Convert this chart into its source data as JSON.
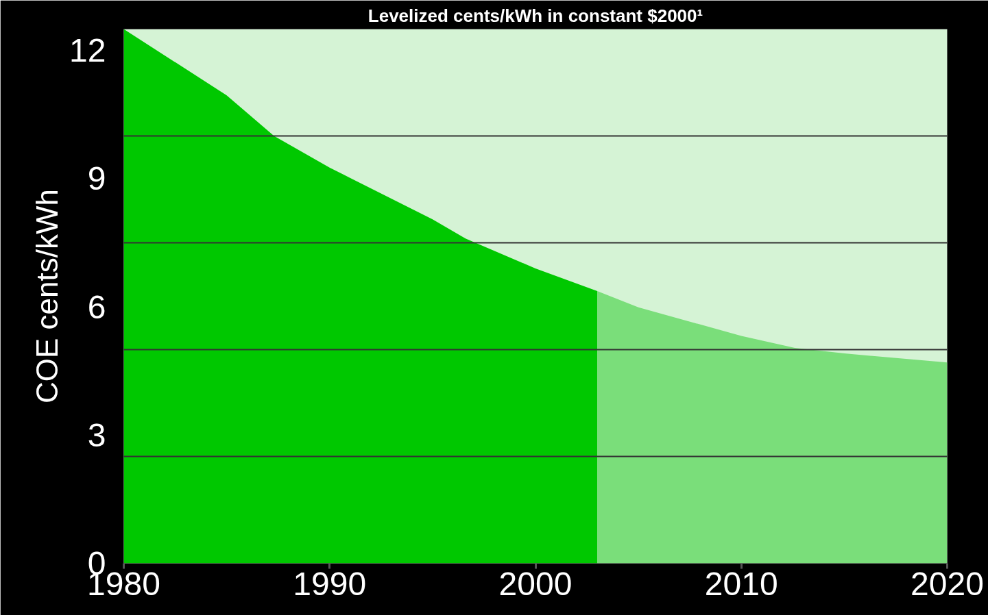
{
  "chart_data": {
    "type": "area",
    "title": "Levelized cents/kWh in constant $2000¹",
    "ylabel": "COE cents/kWh",
    "series": [
      {
        "color": "#00c800",
        "x": [
          1980,
          1985,
          1987.3,
          1990,
          1995,
          1996.6,
          2000,
          2003
        ],
        "values": [
          12.5,
          10.95,
          10,
          9.26,
          8.05,
          7.6,
          6.9,
          6.37
        ]
      },
      {
        "color": "#7ade7a",
        "x": [
          2003,
          2005,
          2010,
          2012.6,
          2015,
          2020
        ],
        "values": [
          6.37,
          5.99,
          5.32,
          5.04,
          4.91,
          4.7
        ]
      }
    ],
    "xlim": [
      1980,
      2020
    ],
    "xticks": [
      1980,
      1990,
      2000,
      2010,
      2020
    ],
    "ylim": [
      0,
      12.5
    ],
    "yticks": [
      0,
      3,
      6,
      9,
      12
    ],
    "ref_lines": [
      {
        "axis": "y",
        "value": 2.5,
        "color": "#333333"
      },
      {
        "axis": "y",
        "value": 5,
        "color": "#333333"
      },
      {
        "axis": "y",
        "value": 7.5,
        "color": "#333333"
      },
      {
        "axis": "y",
        "value": 10,
        "color": "#333333"
      }
    ],
    "bands": [
      {
        "axis": "y",
        "from": 0,
        "to": 12.5,
        "color": "#d5f3d5"
      }
    ],
    "grid": false
  }
}
